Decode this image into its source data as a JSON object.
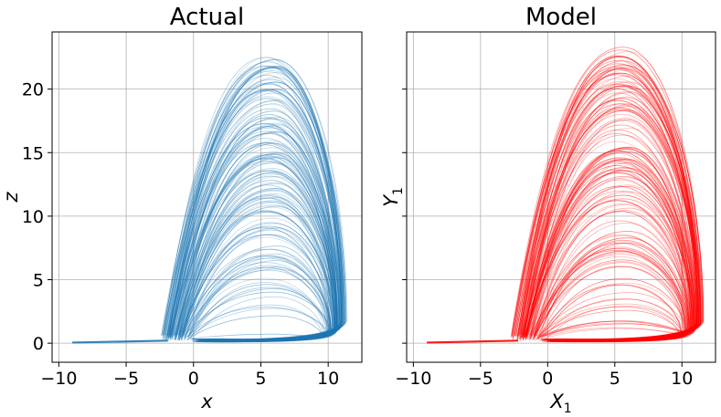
{
  "chart_data": [
    {
      "type": "line",
      "title": "Actual",
      "xlabel": "x",
      "ylabel": "z",
      "color": "#1f77b4",
      "xlim": [
        -10.5,
        12.5
      ],
      "ylim": [
        -1.5,
        24.5
      ],
      "xticks": [
        -10,
        -5,
        0,
        5,
        10
      ],
      "yticks": [
        0,
        5,
        10,
        15,
        20
      ],
      "xtick_labels": [
        "−10",
        "−5",
        "0",
        "5",
        "10"
      ],
      "ytick_labels": [
        "0",
        "5",
        "10",
        "15",
        "20"
      ],
      "grid": true,
      "trajectory": {
        "x_start": -9,
        "z_start": 0.05,
        "left_edge_x": -2.2,
        "right_edge_x": 11.2,
        "peak_x": 5.8,
        "max_peak_z": 22.5
      }
    },
    {
      "type": "line",
      "title": "Model",
      "xlabel": "X",
      "xlabel_sub": "1",
      "ylabel": "Y",
      "ylabel_sub": "1",
      "color": "#ff0000",
      "xlim": [
        -10.5,
        12.5
      ],
      "ylim": [
        -1.5,
        24.5
      ],
      "xticks": [
        -10,
        -5,
        0,
        5,
        10
      ],
      "yticks": [
        0,
        5,
        10,
        15,
        20
      ],
      "xtick_labels": [
        "−10",
        "−5",
        "0",
        "5",
        "10"
      ],
      "ytick_labels": [],
      "grid": true,
      "trajectory": {
        "x_start": -9,
        "z_start": 0.05,
        "left_edge_x": -2.5,
        "right_edge_x": 11.5,
        "peak_x": 5.6,
        "max_peak_z": 23.3
      }
    }
  ]
}
